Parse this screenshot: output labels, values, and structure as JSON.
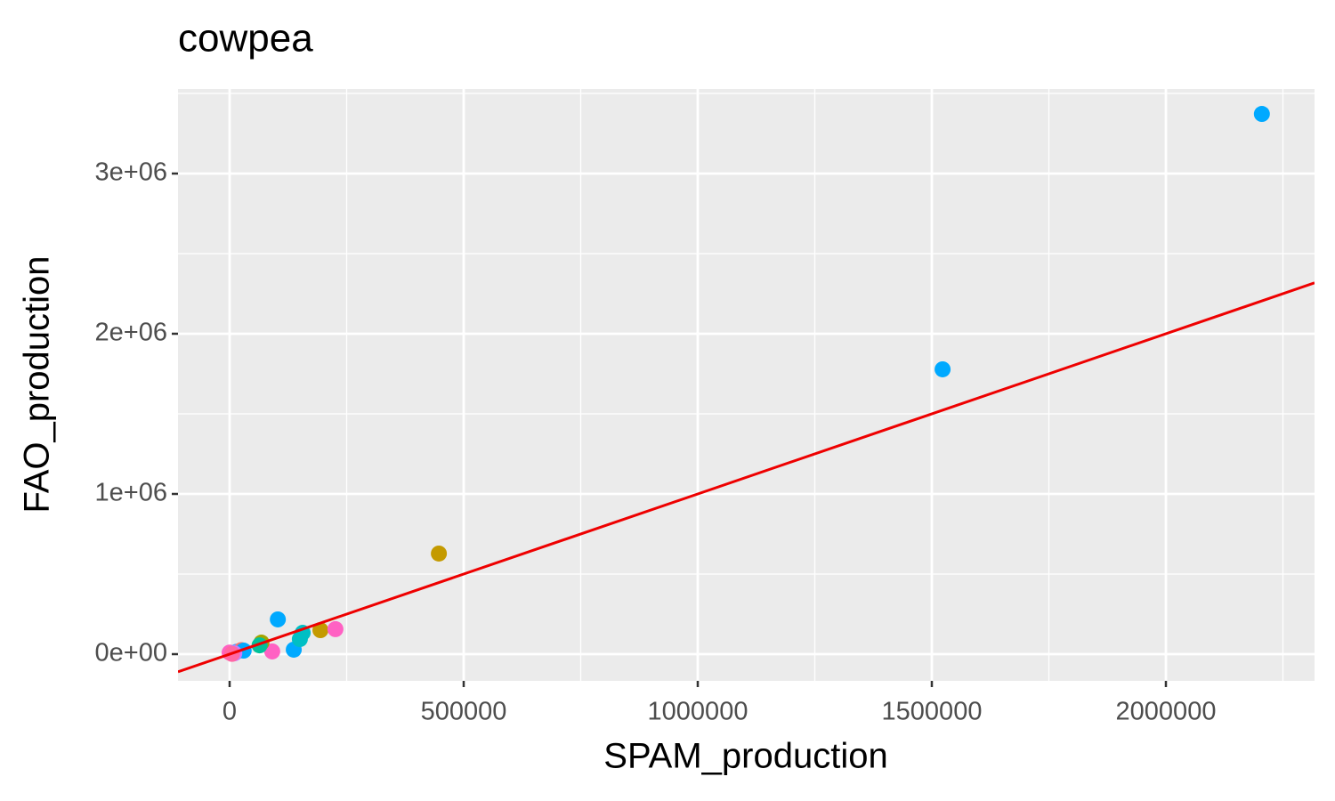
{
  "chart_data": {
    "type": "scatter",
    "title": "cowpea",
    "x_label": "SPAM_production",
    "y_label": "FAO_production",
    "xlim": [
      -110266,
      2317490
    ],
    "ylim": [
      -166667,
      3527778
    ],
    "xticks": [
      0,
      500000,
      1000000,
      1500000,
      2000000
    ],
    "x_minor_grid": [
      250000,
      750000,
      1250000,
      1750000,
      2250000
    ],
    "yticks": [
      {
        "value": 0,
        "label": "0e+00"
      },
      {
        "value": 1000000,
        "label": "1e+06"
      },
      {
        "value": 2000000,
        "label": "2e+06"
      },
      {
        "value": 3000000,
        "label": "3e+06"
      }
    ],
    "y_minor_grid": [
      500000,
      1500000,
      2500000,
      3500000
    ],
    "grid": true,
    "x": [
      2205000,
      1523000,
      447000,
      103000,
      137000,
      150000,
      156000,
      194000,
      226000,
      91000,
      68000,
      64000,
      0,
      15000,
      25000,
      30000,
      10000,
      5000
    ],
    "values": [
      3372000,
      1778000,
      628000,
      217000,
      28000,
      94000,
      133000,
      150000,
      156000,
      17000,
      72000,
      55000,
      10000,
      15000,
      25000,
      22000,
      5000,
      2000
    ],
    "colors": [
      "#00A9FF",
      "#00A9FF",
      "#C49A00",
      "#00A9FF",
      "#00A9FF",
      "#00BFC4",
      "#00BFC4",
      "#C49A00",
      "#FF61C3",
      "#FF61C3",
      "#A3A500",
      "#00C19A",
      "#FF61C3",
      "#619CFF",
      "#F8766D",
      "#00A9FF",
      "#C77CFF",
      "#FF67A4"
    ],
    "reference_line": {
      "slope": 1,
      "intercept": 0,
      "color": "#ee0000"
    }
  }
}
